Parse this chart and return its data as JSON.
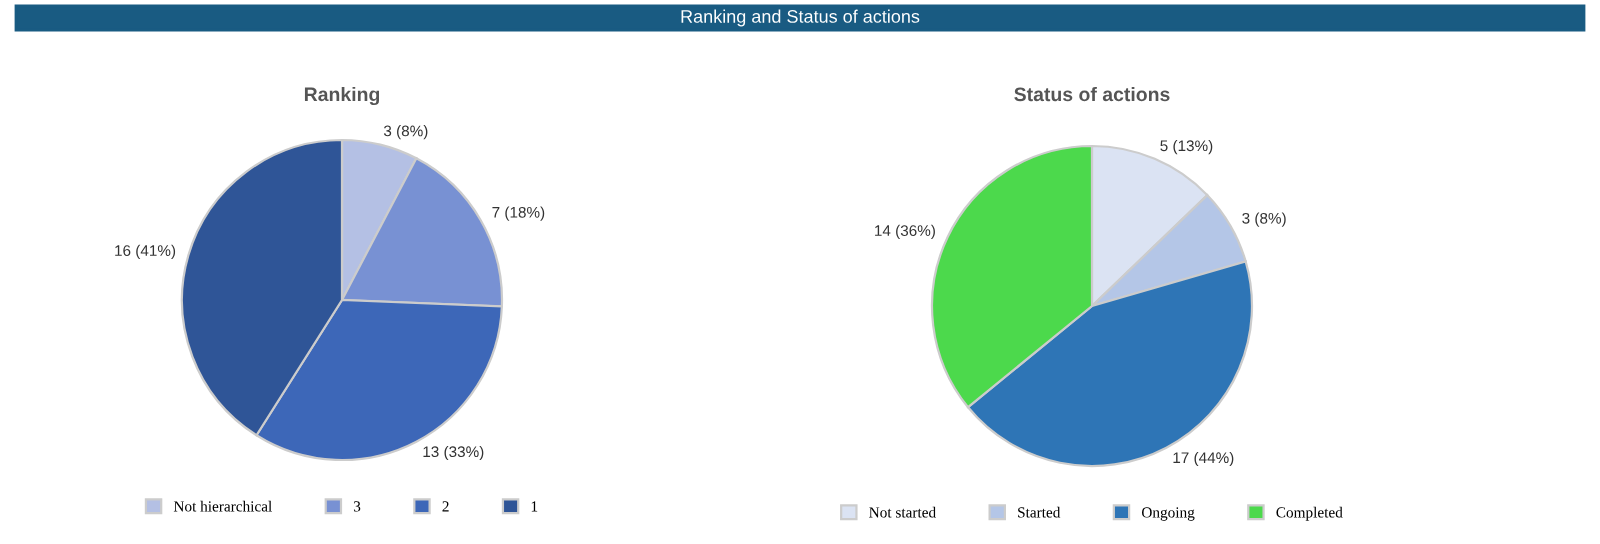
{
  "chart_data": [
    {
      "type": "pie",
      "title": "Ranking",
      "annotations": [
        "Ranking and Status of actions"
      ],
      "categories": [
        "Not hierarchical",
        "3",
        "2",
        "1"
      ],
      "values": [
        3,
        7,
        13,
        16
      ],
      "colors": [
        "#b4c0e4",
        "#7891d3",
        "#3d67b8",
        "#2f5597"
      ],
      "value_labels": [
        "3 (8%)",
        "7 (18%)",
        "13 (33%)",
        "16 (41%)"
      ],
      "legend": "bottom"
    },
    {
      "type": "pie",
      "title": "Status of actions",
      "categories": [
        "Not started",
        "Started",
        "Ongoing",
        "Completed"
      ],
      "values": [
        5,
        3,
        17,
        14
      ],
      "colors": [
        "#dbe3f3",
        "#b4c6e7",
        "#2e75b6",
        "#4cd94c"
      ],
      "value_labels": [
        "5 (13%)",
        "3 (8%)",
        "17 (44%)",
        "14 (36%)"
      ],
      "legend": "bottom"
    }
  ]
}
